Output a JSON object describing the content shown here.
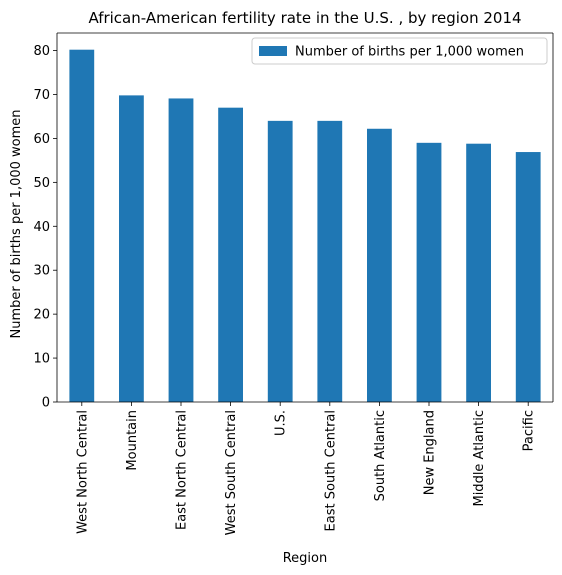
{
  "chart_data": {
    "type": "bar",
    "title": "African-American fertility rate in the U.S. , by region 2014",
    "xlabel": "Region",
    "ylabel": "Number of births per 1,000 women",
    "ylim": [
      0,
      84
    ],
    "yticks": [
      0,
      10,
      20,
      30,
      40,
      50,
      60,
      70,
      80
    ],
    "grid": false,
    "legend_position": "top-right",
    "categories": [
      "West North Central",
      "Mountain",
      "East North Central",
      "West South Central",
      "U.S.",
      "East South Central",
      "South Atlantic",
      "New England",
      "Middle Atlantic",
      "Pacific"
    ],
    "series": [
      {
        "name": "Number of births per 1,000 women",
        "color": "#1f77b4",
        "values": [
          80.2,
          69.8,
          69.1,
          67.0,
          64.0,
          64.0,
          62.2,
          59.0,
          58.8,
          56.9
        ]
      }
    ]
  }
}
